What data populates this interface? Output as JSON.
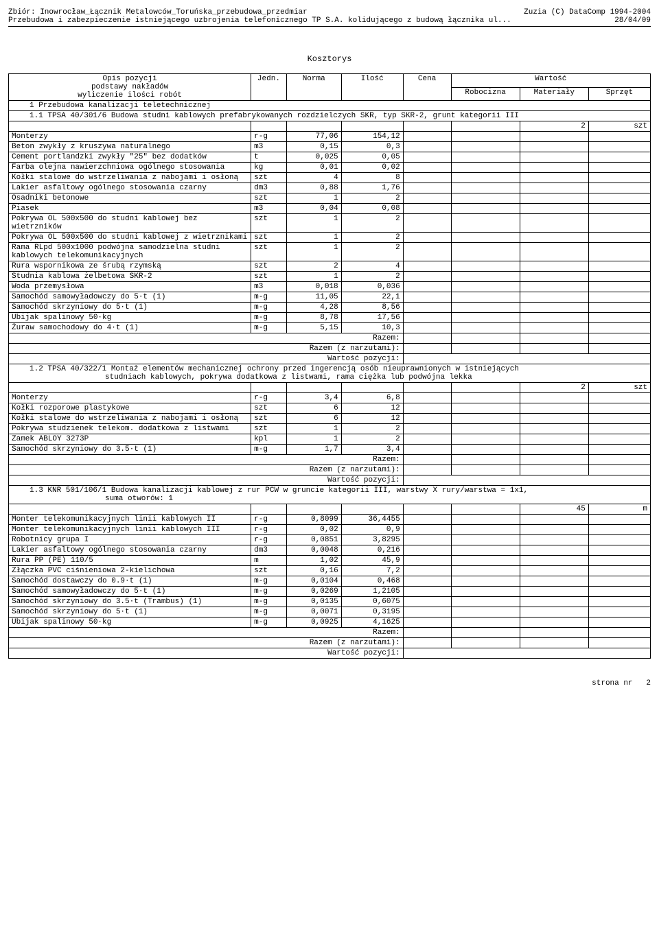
{
  "header": {
    "left1": "Zbiór: Inowrocław_Łącznik Metalowców_Toruńska_przebudowa_przedmiar",
    "right1": "Zuzia (C) DataComp 1994-2004",
    "left2": "Przebudowa i zabezpieczenie istniejącego uzbrojenia telefonicznego TP S.A. kolidującego z budową łącznika ul...",
    "right2": "28/04/09"
  },
  "title": "Kosztorys",
  "columns": {
    "opis": "Opis pozycji",
    "podstawy": "podstawy nakładów",
    "wyliczenie": "wyliczenie ilości robót",
    "jedn": "Jedn.",
    "norma": "Norma",
    "ilosc": "Ilość",
    "cena": "Cena",
    "wartosc": "Wartość",
    "robocizna": "Robocizna",
    "materialy": "Materiały",
    "sprzet": "Sprzęt"
  },
  "section1": {
    "header": "1 Przebudowa kanalizacji teletechnicznej"
  },
  "item11": {
    "header": "1.1 TPSA 40/301/6 Budowa studni kablowych prefabrykowanych rozdzielczych SKR, typ SKR-2, grunt kategorii III",
    "qty": "2",
    "unit": "szt",
    "rows": [
      {
        "opis": "Monterzy",
        "jedn": "r-g",
        "norma": "77,06",
        "ilosc": "154,12"
      },
      {
        "opis": "Beton zwykły z kruszywa naturalnego",
        "jedn": "m3",
        "norma": "0,15",
        "ilosc": "0,3"
      },
      {
        "opis": "Cement portlandzki zwykły \"25\" bez dodatków",
        "jedn": "t",
        "norma": "0,025",
        "ilosc": "0,05"
      },
      {
        "opis": "Farba olejna nawierzchniowa ogólnego stosowania",
        "jedn": "kg",
        "norma": "0,01",
        "ilosc": "0,02"
      },
      {
        "opis": "Kołki stalowe do wstrzeliwania z nabojami i osłoną",
        "jedn": "szt",
        "norma": "4",
        "ilosc": "8"
      },
      {
        "opis": "Lakier asfaltowy ogólnego stosowania czarny",
        "jedn": "dm3",
        "norma": "0,88",
        "ilosc": "1,76"
      },
      {
        "opis": "Osadniki betonowe",
        "jedn": "szt",
        "norma": "1",
        "ilosc": "2"
      },
      {
        "opis": "Piasek",
        "jedn": "m3",
        "norma": "0,04",
        "ilosc": "0,08"
      },
      {
        "opis": "Pokrywa OL 500x500 do studni kablowej bez wietrzników",
        "jedn": "szt",
        "norma": "1",
        "ilosc": "2"
      },
      {
        "opis": "Pokrywa OL 500x500 do studni kablowej z wietrznikami",
        "jedn": "szt",
        "norma": "1",
        "ilosc": "2"
      },
      {
        "opis": "Rama RLpd 500x1000 podwójna samodzielna studni kablowych telekomunikacyjnych",
        "jedn": "szt",
        "norma": "1",
        "ilosc": "2"
      },
      {
        "opis": "Rura wspornikowa ze śrubą rzymską",
        "jedn": "szt",
        "norma": "2",
        "ilosc": "4"
      },
      {
        "opis": "Studnia kablowa żelbetowa SKR-2",
        "jedn": "szt",
        "norma": "1",
        "ilosc": "2"
      },
      {
        "opis": "Woda przemysłowa",
        "jedn": "m3",
        "norma": "0,018",
        "ilosc": "0,036"
      },
      {
        "opis": "Samochód samowyładowczy do 5·t (1)",
        "jedn": "m-g",
        "norma": "11,05",
        "ilosc": "22,1"
      },
      {
        "opis": "Samochód skrzyniowy do 5·t (1)",
        "jedn": "m-g",
        "norma": "4,28",
        "ilosc": "8,56"
      },
      {
        "opis": "Ubijak spalinowy 50·kg",
        "jedn": "m-g",
        "norma": "8,78",
        "ilosc": "17,56"
      },
      {
        "opis": "Żuraw samochodowy do 4·t (1)",
        "jedn": "m-g",
        "norma": "5,15",
        "ilosc": "10,3"
      }
    ]
  },
  "item12": {
    "header1": "1.2 TPSA 40/322/1 Montaż elementów mechanicznej ochrony przed ingerencją osób nieuprawnionych w istniejących",
    "header2": "studniach kablowych, pokrywa dodatkowa z listwami, rama ciężka lub podwójna lekka",
    "qty": "2",
    "unit": "szt",
    "rows": [
      {
        "opis": "Monterzy",
        "jedn": "r-g",
        "norma": "3,4",
        "ilosc": "6,8"
      },
      {
        "opis": "Kołki rozporowe plastykowe",
        "jedn": "szt",
        "norma": "6",
        "ilosc": "12"
      },
      {
        "opis": "Kołki stalowe do wstrzeliwania z nabojami i osłoną",
        "jedn": "szt",
        "norma": "6",
        "ilosc": "12"
      },
      {
        "opis": "Pokrywa studzienek telekom. dodatkowa z listwami",
        "jedn": "szt",
        "norma": "1",
        "ilosc": "2"
      },
      {
        "opis": "Zamek ABLOY 3273P",
        "jedn": "kpl",
        "norma": "1",
        "ilosc": "2"
      },
      {
        "opis": "Samochód skrzyniowy do 3.5·t (1)",
        "jedn": "m-g",
        "norma": "1,7",
        "ilosc": "3,4"
      }
    ]
  },
  "item13": {
    "header1": "1.3 KNR 501/106/1 Budowa kanalizacji kablowej z rur PCW w gruncie kategorii III, warstwy X rury/warstwa = 1x1,",
    "header2": "suma otworów: 1",
    "qty": "45",
    "unit": "m",
    "rows": [
      {
        "opis": "Monter telekomunikacyjnych linii kablowych II",
        "jedn": "r-g",
        "norma": "0,8099",
        "ilosc": "36,4455"
      },
      {
        "opis": "Monter telekomunikacyjnych linii kablowych III",
        "jedn": "r-g",
        "norma": "0,02",
        "ilosc": "0,9"
      },
      {
        "opis": "Robotnicy grupa I",
        "jedn": "r-g",
        "norma": "0,0851",
        "ilosc": "3,8295"
      },
      {
        "opis": "Lakier asfaltowy ogólnego stosowania czarny",
        "jedn": "dm3",
        "norma": "0,0048",
        "ilosc": "0,216"
      },
      {
        "opis": "Rura PP (PE) 110/5",
        "jedn": "m",
        "norma": "1,02",
        "ilosc": "45,9"
      },
      {
        "opis": "Złączka PVC ciśnieniowa 2-kielichowa",
        "jedn": "szt",
        "norma": "0,16",
        "ilosc": "7,2"
      },
      {
        "opis": "Samochód dostawczy do 0.9·t (1)",
        "jedn": "m-g",
        "norma": "0,0104",
        "ilosc": "0,468"
      },
      {
        "opis": "Samochód samowyładowczy do 5·t (1)",
        "jedn": "m-g",
        "norma": "0,0269",
        "ilosc": "1,2105"
      },
      {
        "opis": "Samochód skrzyniowy do 3.5·t (Trambus) (1)",
        "jedn": "m-g",
        "norma": "0,0135",
        "ilosc": "0,6075"
      },
      {
        "opis": "Samochód skrzyniowy do 5·t (1)",
        "jedn": "m-g",
        "norma": "0,0071",
        "ilosc": "0,3195"
      },
      {
        "opis": "Ubijak spalinowy 50·kg",
        "jedn": "m-g",
        "norma": "0,0925",
        "ilosc": "4,1625"
      }
    ]
  },
  "sums": {
    "razem": "Razem:",
    "razem_narzut": "Razem (z narzutami):",
    "wartosc_poz": "Wartość pozycji:"
  },
  "footer": {
    "page": "strona nr",
    "num": "2"
  }
}
